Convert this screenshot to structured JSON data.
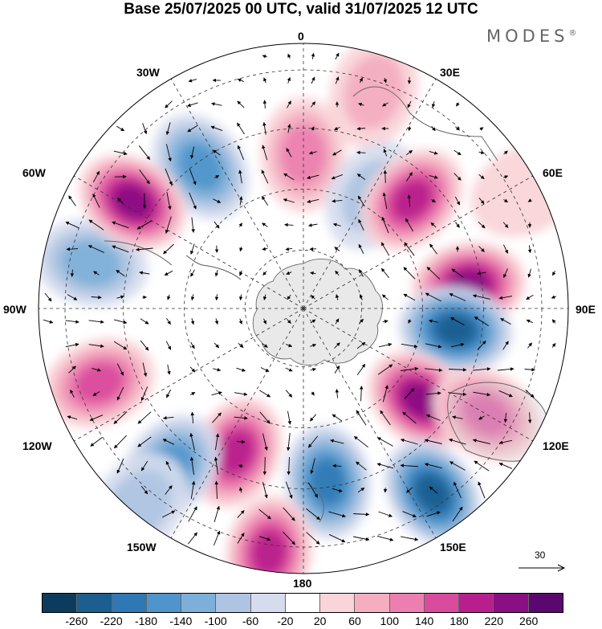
{
  "title": "Base 25/07/2025 00 UTC, valid 31/07/2025 12 UTC",
  "brand": "MODES",
  "brand_mark": "®",
  "longitude_labels": {
    "lon_0": "0",
    "lon_30e": "30E",
    "lon_60e": "60E",
    "lon_90e": "90E",
    "lon_120e": "120E",
    "lon_150e": "150E",
    "lon_180": "180",
    "lon_150w": "150W",
    "lon_120w": "120W",
    "lon_90w": "90W",
    "lon_60w": "60W",
    "lon_30w": "30W"
  },
  "reference_vector": "30",
  "colorbar": {
    "colors": [
      "#0b3c5d",
      "#1b5e8f",
      "#2f78b5",
      "#4f95cb",
      "#7eafd8",
      "#aec4e2",
      "#d6dcee",
      "#ffffff",
      "#f9d4d8",
      "#f4aec0",
      "#ec7fb0",
      "#d94b9c",
      "#b81f8c",
      "#8a0e84",
      "#5a0870"
    ],
    "ticks": [
      "-260",
      "-220",
      "-180",
      "-140",
      "-100",
      "-60",
      "-20",
      "20",
      "60",
      "100",
      "140",
      "180",
      "220",
      "260"
    ]
  },
  "anomaly_cells": [
    {
      "lon": -36,
      "r": 0.66,
      "value": -150
    },
    {
      "lon": 0,
      "r": 0.58,
      "value": 120
    },
    {
      "lon": 18,
      "r": 0.86,
      "value": 90
    },
    {
      "lon": 32,
      "r": 0.5,
      "value": -90
    },
    {
      "lon": 45,
      "r": 0.58,
      "value": 210
    },
    {
      "lon": 82,
      "r": 0.63,
      "value": 240
    },
    {
      "lon": 98,
      "r": 0.58,
      "value": -230
    },
    {
      "lon": 128,
      "r": 0.56,
      "value": 230
    },
    {
      "lon": 145,
      "r": 0.85,
      "value": -240
    },
    {
      "lon": 120,
      "r": 0.8,
      "value": 170
    },
    {
      "lon": 172,
      "r": 0.66,
      "value": -200
    },
    {
      "lon": -172,
      "r": 0.93,
      "value": 180
    },
    {
      "lon": -155,
      "r": 0.6,
      "value": 200
    },
    {
      "lon": -140,
      "r": 0.78,
      "value": -160
    },
    {
      "lon": -110,
      "r": 0.82,
      "value": 160
    },
    {
      "lon": -78,
      "r": 0.82,
      "value": -110
    },
    {
      "lon": -58,
      "r": 0.76,
      "value": 250
    },
    {
      "lon": -140,
      "r": 0.97,
      "value": -60
    },
    {
      "lon": 62,
      "r": 0.95,
      "value": 40
    }
  ]
}
